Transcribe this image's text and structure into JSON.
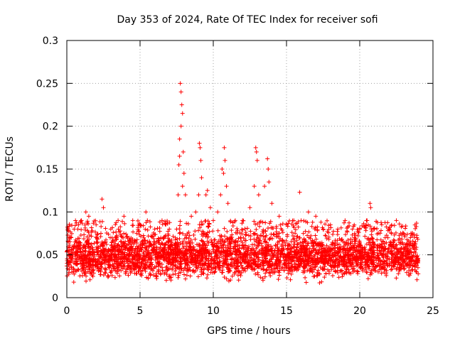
{
  "chart_data": {
    "type": "scatter",
    "title": "Day 353 of 2024, Rate Of TEC Index for receiver sofi",
    "xlabel": "GPS time / hours",
    "ylabel": "ROTI / TECUs",
    "xlim": [
      0,
      25
    ],
    "ylim": [
      0,
      0.3
    ],
    "xticks": [
      0,
      5,
      10,
      15,
      20,
      25
    ],
    "yticks": [
      0,
      0.05,
      0.1,
      0.15,
      0.2,
      0.25,
      0.3
    ],
    "xtick_labels": [
      "0",
      "5",
      "10",
      "15",
      "20",
      "25"
    ],
    "ytick_labels": [
      "0",
      "0.05",
      "0.1",
      "0.15",
      "0.2",
      "0.25",
      "0.3"
    ],
    "grid": true,
    "marker": "+",
    "marker_color": "#ff0000",
    "series": [
      {
        "name": "ROTI",
        "description": "dense band of ROTI values over 0-24 h",
        "band_range": [
          0.015,
          0.08
        ],
        "points": [
          [
            0.1,
            0.065
          ],
          [
            0.3,
            0.07
          ],
          [
            0.5,
            0.08
          ],
          [
            0.8,
            0.085
          ],
          [
            1.0,
            0.09
          ],
          [
            1.3,
            0.1
          ],
          [
            1.5,
            0.095
          ],
          [
            2.0,
            0.085
          ],
          [
            2.4,
            0.115
          ],
          [
            2.5,
            0.105
          ],
          [
            3.0,
            0.08
          ],
          [
            3.5,
            0.09
          ],
          [
            3.9,
            0.095
          ],
          [
            4.5,
            0.09
          ],
          [
            5.0,
            0.085
          ],
          [
            5.4,
            0.1
          ],
          [
            5.5,
            0.09
          ],
          [
            6.0,
            0.08
          ],
          [
            6.5,
            0.09
          ],
          [
            7.0,
            0.08
          ],
          [
            7.5,
            0.08
          ],
          [
            7.6,
            0.12
          ],
          [
            7.65,
            0.155
          ],
          [
            7.7,
            0.185
          ],
          [
            7.75,
            0.25
          ],
          [
            7.8,
            0.24
          ],
          [
            7.85,
            0.225
          ],
          [
            7.9,
            0.215
          ],
          [
            7.95,
            0.17
          ],
          [
            8.0,
            0.145
          ],
          [
            7.8,
            0.2
          ],
          [
            7.7,
            0.165
          ],
          [
            7.9,
            0.13
          ],
          [
            8.1,
            0.12
          ],
          [
            8.5,
            0.095
          ],
          [
            8.8,
            0.1
          ],
          [
            9.0,
            0.12
          ],
          [
            9.05,
            0.18
          ],
          [
            9.1,
            0.175
          ],
          [
            9.15,
            0.16
          ],
          [
            9.2,
            0.14
          ],
          [
            9.5,
            0.12
          ],
          [
            9.6,
            0.125
          ],
          [
            9.8,
            0.105
          ],
          [
            10.0,
            0.09
          ],
          [
            10.3,
            0.1
          ],
          [
            10.5,
            0.12
          ],
          [
            10.6,
            0.15
          ],
          [
            10.7,
            0.145
          ],
          [
            10.75,
            0.175
          ],
          [
            10.8,
            0.16
          ],
          [
            10.9,
            0.13
          ],
          [
            11.0,
            0.11
          ],
          [
            11.5,
            0.09
          ],
          [
            12.0,
            0.09
          ],
          [
            12.5,
            0.105
          ],
          [
            12.8,
            0.13
          ],
          [
            12.9,
            0.175
          ],
          [
            12.95,
            0.17
          ],
          [
            13.0,
            0.16
          ],
          [
            13.1,
            0.12
          ],
          [
            13.5,
            0.13
          ],
          [
            13.7,
            0.162
          ],
          [
            13.75,
            0.15
          ],
          [
            13.8,
            0.135
          ],
          [
            14.0,
            0.11
          ],
          [
            14.5,
            0.095
          ],
          [
            15.0,
            0.085
          ],
          [
            15.5,
            0.09
          ],
          [
            15.9,
            0.123
          ],
          [
            16.0,
            0.09
          ],
          [
            16.5,
            0.1
          ],
          [
            17.0,
            0.095
          ],
          [
            17.5,
            0.08
          ],
          [
            18.0,
            0.085
          ],
          [
            18.5,
            0.08
          ],
          [
            19.0,
            0.09
          ],
          [
            19.5,
            0.08
          ],
          [
            20.0,
            0.08
          ],
          [
            20.5,
            0.09
          ],
          [
            20.7,
            0.11
          ],
          [
            20.75,
            0.105
          ],
          [
            21.0,
            0.08
          ],
          [
            21.5,
            0.085
          ],
          [
            22.0,
            0.08
          ],
          [
            22.5,
            0.09
          ],
          [
            23.0,
            0.075
          ],
          [
            23.5,
            0.075
          ],
          [
            23.9,
            0.07
          ]
        ]
      }
    ]
  }
}
